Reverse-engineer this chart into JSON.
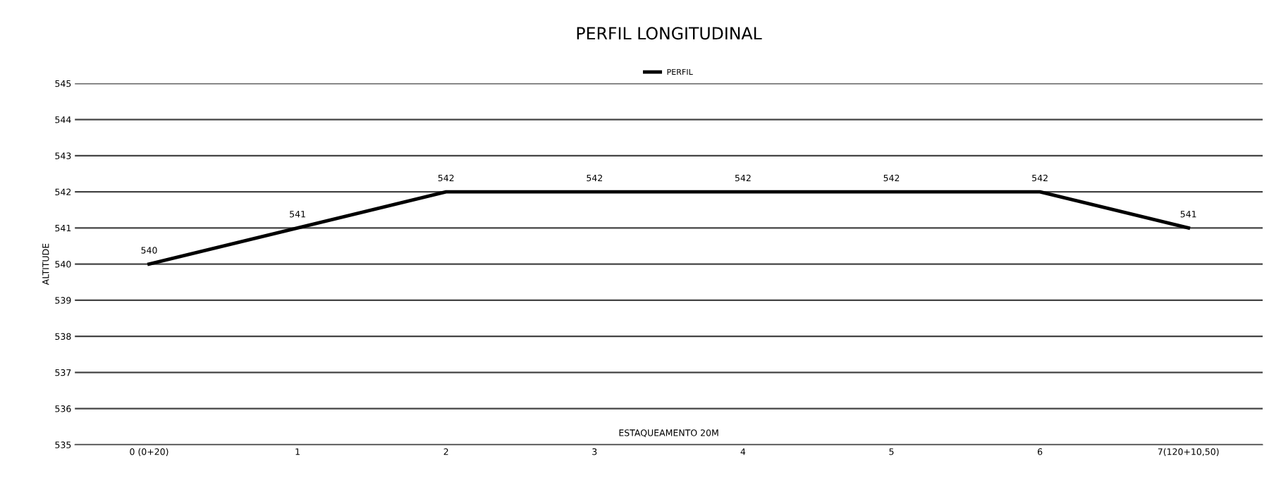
{
  "chart_data": {
    "type": "line",
    "title": "PERFIL LONGITUDINAL",
    "xlabel": "ESTAQUEAMENTO 20M",
    "ylabel": "ALTITUDE",
    "categories": [
      "0 (0+20)",
      "1",
      "2",
      "3",
      "4",
      "5",
      "6",
      "7(120+10,50)"
    ],
    "series": [
      {
        "name": "PERFIL",
        "color": "#000000",
        "values": [
          540,
          541,
          542,
          542,
          542,
          542,
          542,
          541
        ]
      }
    ],
    "ylim": [
      535,
      545
    ],
    "yticks": [
      535,
      536,
      537,
      538,
      539,
      540,
      541,
      542,
      543,
      544,
      545
    ],
    "grid": "y",
    "legend": "top",
    "data_labels": true,
    "marker": "none",
    "line_style": "solid"
  }
}
